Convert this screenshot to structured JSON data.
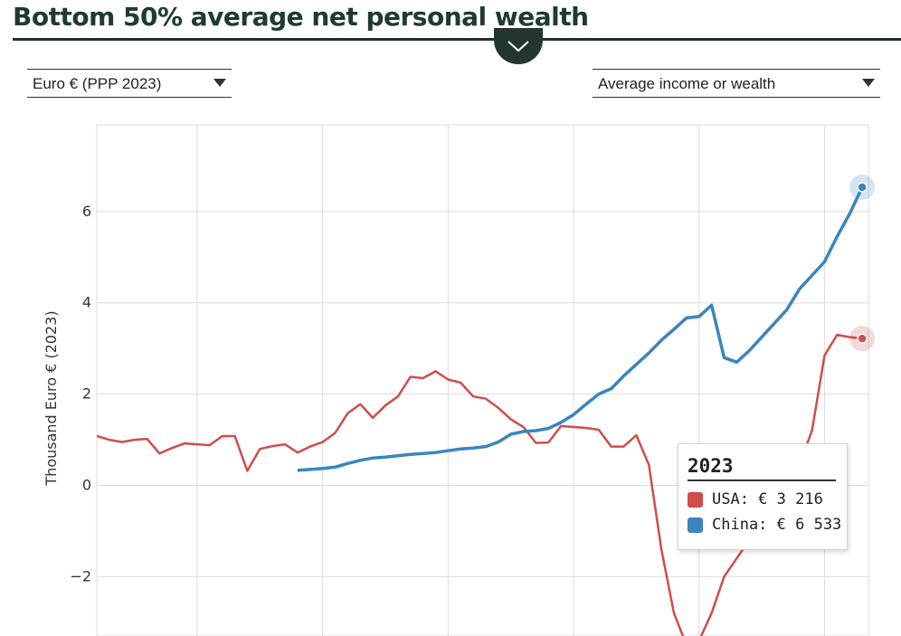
{
  "header": {
    "title": "Bottom 50% average net personal wealth"
  },
  "controls": {
    "currency_select": "Euro € (PPP 2023)",
    "metric_select": "Average income or wealth"
  },
  "tooltip": {
    "year": "2023",
    "rows": [
      {
        "label": "USA: € 3 216"
      },
      {
        "label": "China: € 6 533"
      }
    ]
  },
  "chart_data": {
    "type": "line",
    "ylabel": "Thousand Euro € (2023)",
    "xlabel": "",
    "ylim": [
      -3.3,
      7.9
    ],
    "xlim": [
      1962,
      2023.5
    ],
    "yticks": [
      -2,
      0,
      2,
      4,
      6
    ],
    "yticklabels": [
      "−2",
      "0",
      "2",
      "4",
      "6"
    ],
    "grid": true,
    "x_axis_labels_shown": false,
    "colors": {
      "USA": "#cf4d4a",
      "China": "#3b85be"
    },
    "series": [
      {
        "name": "USA",
        "x": [
          1962,
          1963,
          1964,
          1965,
          1966,
          1967,
          1968,
          1969,
          1970,
          1971,
          1972,
          1973,
          1974,
          1975,
          1976,
          1977,
          1978,
          1979,
          1980,
          1981,
          1982,
          1983,
          1984,
          1985,
          1986,
          1987,
          1988,
          1989,
          1990,
          1991,
          1992,
          1993,
          1994,
          1995,
          1996,
          1997,
          1998,
          1999,
          2000,
          2001,
          2002,
          2003,
          2004,
          2005,
          2006,
          2007,
          2008,
          2009,
          2010,
          2011,
          2012,
          2013,
          2014,
          2015,
          2016,
          2017,
          2018,
          2019,
          2020,
          2021,
          2022,
          2023
        ],
        "values": [
          1.08,
          1.0,
          0.95,
          1.0,
          1.02,
          0.7,
          0.82,
          0.92,
          0.9,
          0.88,
          1.08,
          1.08,
          0.32,
          0.8,
          0.86,
          0.9,
          0.72,
          0.85,
          0.95,
          1.15,
          1.58,
          1.78,
          1.48,
          1.75,
          1.95,
          2.38,
          2.35,
          2.5,
          2.32,
          2.25,
          1.95,
          1.9,
          1.7,
          1.45,
          1.28,
          0.93,
          0.94,
          1.3,
          1.28,
          1.26,
          1.22,
          0.85,
          0.85,
          1.1,
          0.45,
          -1.4,
          -2.8,
          -3.5,
          -3.4,
          -2.8,
          -2.0,
          -1.6,
          -1.2,
          -0.8,
          -0.5,
          0.0,
          0.45,
          1.2,
          2.85,
          3.3,
          3.25,
          3.216
        ]
      },
      {
        "name": "China",
        "x": [
          1978,
          1979,
          1980,
          1981,
          1982,
          1983,
          1984,
          1985,
          1986,
          1987,
          1988,
          1989,
          1990,
          1991,
          1992,
          1993,
          1994,
          1995,
          1996,
          1997,
          1998,
          1999,
          2000,
          2001,
          2002,
          2003,
          2004,
          2005,
          2006,
          2007,
          2008,
          2009,
          2010,
          2011,
          2012,
          2013,
          2014,
          2015,
          2016,
          2017,
          2018,
          2019,
          2020,
          2021,
          2022,
          2023
        ],
        "values": [
          0.33,
          0.35,
          0.37,
          0.4,
          0.48,
          0.55,
          0.6,
          0.62,
          0.65,
          0.68,
          0.7,
          0.72,
          0.76,
          0.8,
          0.82,
          0.85,
          0.95,
          1.12,
          1.18,
          1.2,
          1.25,
          1.38,
          1.55,
          1.78,
          2.0,
          2.12,
          2.4,
          2.65,
          2.9,
          3.18,
          3.42,
          3.67,
          3.7,
          3.95,
          2.8,
          2.7,
          2.95,
          3.25,
          3.55,
          3.85,
          4.3,
          4.6,
          4.9,
          5.45,
          5.95,
          6.533
        ]
      }
    ]
  }
}
